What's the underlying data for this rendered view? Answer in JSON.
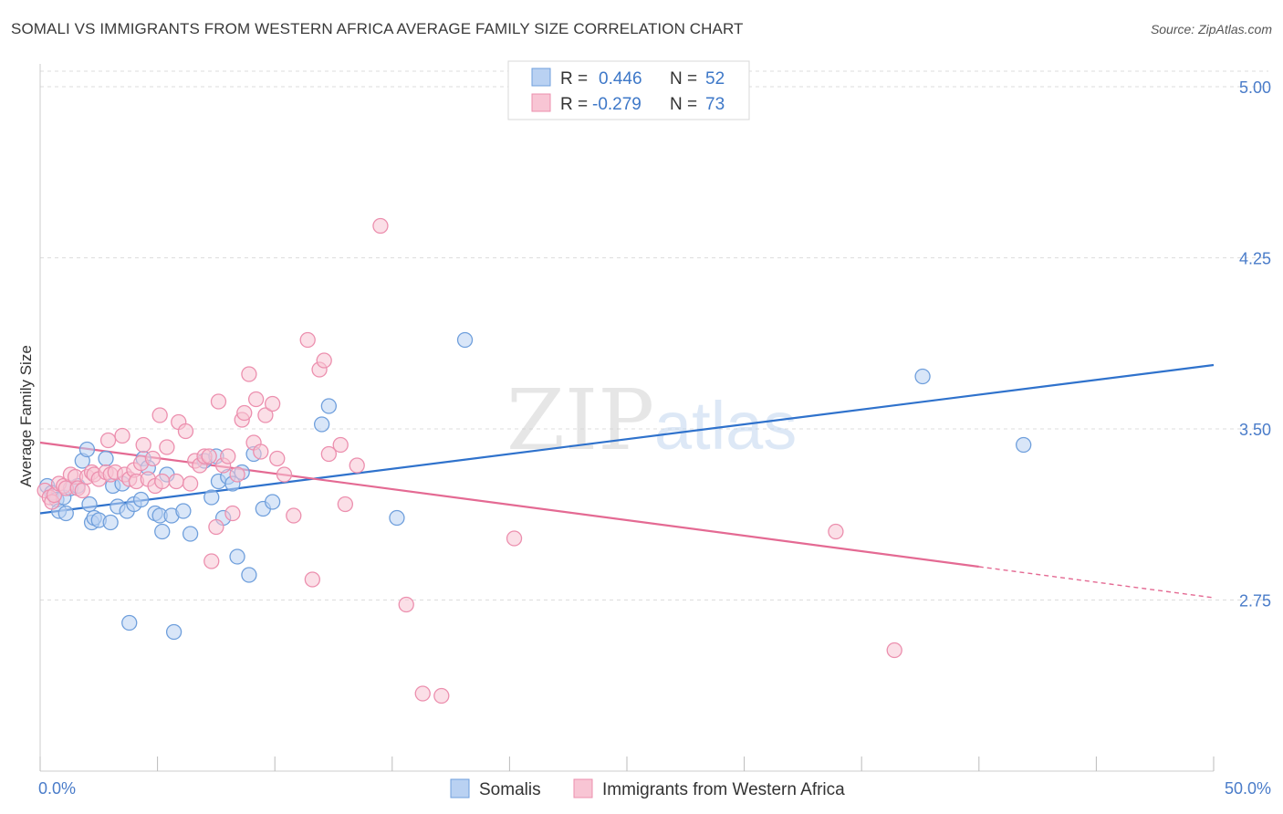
{
  "header": {
    "title": "SOMALI VS IMMIGRANTS FROM WESTERN AFRICA AVERAGE FAMILY SIZE CORRELATION CHART",
    "source": "Source: ZipAtlas.com"
  },
  "watermark": {
    "zip": "ZIP",
    "atlas": "atlas"
  },
  "legend_top": {
    "rows": [
      {
        "r_label": "R = ",
        "r_value": "0.446",
        "n_label": "N = ",
        "n_value": "52"
      },
      {
        "r_label": "R = ",
        "r_value": "-0.279",
        "n_label": "N = ",
        "n_value": "73"
      }
    ]
  },
  "colors": {
    "blue_fill": "#b9d1f2",
    "blue_stroke": "#6f9fdc",
    "blue_line": "#2f72cc",
    "pink_fill": "#f8c5d4",
    "pink_stroke": "#ec8fae",
    "pink_line": "#e46a93",
    "grid": "#dddddd",
    "tick_text": "#4a7cc9"
  },
  "chart_data": {
    "type": "scatter",
    "title": "SOMALI VS IMMIGRANTS FROM WESTERN AFRICA AVERAGE FAMILY SIZE CORRELATION CHART",
    "xlabel": "",
    "ylabel": "Average Family Size",
    "xlim": [
      0,
      50
    ],
    "ylim": [
      2.0,
      5.1
    ],
    "x_tick_labels": [
      "0.0%",
      "50.0%"
    ],
    "y_ticks": [
      2.75,
      3.5,
      4.25,
      5.0
    ],
    "y_tick_labels": [
      "2.75",
      "3.50",
      "4.25",
      "5.00"
    ],
    "grid": true,
    "legend_position": "bottom",
    "series": [
      {
        "name": "Somalis",
        "color": "#6f9fdc",
        "points": [
          [
            0.3,
            3.25
          ],
          [
            0.5,
            3.22
          ],
          [
            0.7,
            3.19
          ],
          [
            0.8,
            3.14
          ],
          [
            1.0,
            3.2
          ],
          [
            1.1,
            3.13
          ],
          [
            1.3,
            3.24
          ],
          [
            1.6,
            3.25
          ],
          [
            1.8,
            3.36
          ],
          [
            2.0,
            3.41
          ],
          [
            2.1,
            3.17
          ],
          [
            2.2,
            3.09
          ],
          [
            2.3,
            3.11
          ],
          [
            2.5,
            3.1
          ],
          [
            2.8,
            3.37
          ],
          [
            3.0,
            3.09
          ],
          [
            3.1,
            3.25
          ],
          [
            3.3,
            3.16
          ],
          [
            3.5,
            3.26
          ],
          [
            3.7,
            3.14
          ],
          [
            3.8,
            2.65
          ],
          [
            4.0,
            3.17
          ],
          [
            4.3,
            3.19
          ],
          [
            4.4,
            3.37
          ],
          [
            4.6,
            3.33
          ],
          [
            4.9,
            3.13
          ],
          [
            5.1,
            3.12
          ],
          [
            5.2,
            3.05
          ],
          [
            5.4,
            3.3
          ],
          [
            5.6,
            3.12
          ],
          [
            5.7,
            2.61
          ],
          [
            6.1,
            3.14
          ],
          [
            6.4,
            3.04
          ],
          [
            7.0,
            3.36
          ],
          [
            7.3,
            3.2
          ],
          [
            7.5,
            3.38
          ],
          [
            7.6,
            3.27
          ],
          [
            7.8,
            3.11
          ],
          [
            8.0,
            3.29
          ],
          [
            8.2,
            3.26
          ],
          [
            8.4,
            2.94
          ],
          [
            8.6,
            3.31
          ],
          [
            8.9,
            2.86
          ],
          [
            9.1,
            3.39
          ],
          [
            9.5,
            3.15
          ],
          [
            9.9,
            3.18
          ],
          [
            12.0,
            3.52
          ],
          [
            12.3,
            3.6
          ],
          [
            15.2,
            3.11
          ],
          [
            18.1,
            3.89
          ],
          [
            37.6,
            3.73
          ],
          [
            41.9,
            3.43
          ]
        ]
      },
      {
        "name": "Immigrants from Western Africa",
        "color": "#ec8fae",
        "points": [
          [
            0.2,
            3.23
          ],
          [
            0.4,
            3.2
          ],
          [
            0.5,
            3.18
          ],
          [
            0.6,
            3.21
          ],
          [
            0.8,
            3.26
          ],
          [
            1.0,
            3.25
          ],
          [
            1.1,
            3.24
          ],
          [
            1.3,
            3.3
          ],
          [
            1.5,
            3.29
          ],
          [
            1.6,
            3.24
          ],
          [
            1.8,
            3.23
          ],
          [
            2.0,
            3.29
          ],
          [
            2.2,
            3.31
          ],
          [
            2.3,
            3.3
          ],
          [
            2.5,
            3.28
          ],
          [
            2.8,
            3.31
          ],
          [
            2.9,
            3.45
          ],
          [
            3.0,
            3.3
          ],
          [
            3.2,
            3.31
          ],
          [
            3.5,
            3.47
          ],
          [
            3.6,
            3.3
          ],
          [
            3.8,
            3.28
          ],
          [
            4.0,
            3.32
          ],
          [
            4.1,
            3.27
          ],
          [
            4.3,
            3.35
          ],
          [
            4.4,
            3.43
          ],
          [
            4.6,
            3.28
          ],
          [
            4.8,
            3.37
          ],
          [
            4.9,
            3.25
          ],
          [
            5.1,
            3.56
          ],
          [
            5.2,
            3.27
          ],
          [
            5.4,
            3.42
          ],
          [
            5.8,
            3.27
          ],
          [
            5.9,
            3.53
          ],
          [
            6.2,
            3.49
          ],
          [
            6.4,
            3.26
          ],
          [
            6.6,
            3.36
          ],
          [
            6.8,
            3.34
          ],
          [
            7.0,
            3.38
          ],
          [
            7.2,
            3.38
          ],
          [
            7.3,
            2.92
          ],
          [
            7.5,
            3.07
          ],
          [
            7.6,
            3.62
          ],
          [
            7.8,
            3.34
          ],
          [
            8.0,
            3.38
          ],
          [
            8.2,
            3.13
          ],
          [
            8.4,
            3.3
          ],
          [
            8.6,
            3.54
          ],
          [
            8.7,
            3.57
          ],
          [
            8.9,
            3.74
          ],
          [
            9.1,
            3.44
          ],
          [
            9.2,
            3.63
          ],
          [
            9.4,
            3.4
          ],
          [
            9.6,
            3.56
          ],
          [
            9.9,
            3.61
          ],
          [
            10.1,
            3.37
          ],
          [
            10.4,
            3.3
          ],
          [
            10.8,
            3.12
          ],
          [
            11.4,
            3.89
          ],
          [
            11.6,
            2.84
          ],
          [
            11.9,
            3.76
          ],
          [
            12.1,
            3.8
          ],
          [
            12.3,
            3.39
          ],
          [
            12.8,
            3.43
          ],
          [
            13.0,
            3.17
          ],
          [
            13.5,
            3.34
          ],
          [
            14.5,
            4.39
          ],
          [
            15.6,
            2.73
          ],
          [
            16.3,
            2.34
          ],
          [
            17.1,
            2.33
          ],
          [
            20.2,
            3.02
          ],
          [
            33.9,
            3.05
          ],
          [
            36.4,
            2.53
          ]
        ]
      }
    ],
    "trendlines": [
      {
        "series": "Somalis",
        "x": [
          0,
          50
        ],
        "y": [
          3.13,
          3.78
        ]
      },
      {
        "series": "Immigrants from Western Africa",
        "x": [
          0,
          50
        ],
        "y": [
          3.44,
          2.76
        ],
        "solid_until_x": 40
      }
    ]
  },
  "legend_bottom": {
    "items": [
      "Somalis",
      "Immigrants from Western Africa"
    ]
  }
}
